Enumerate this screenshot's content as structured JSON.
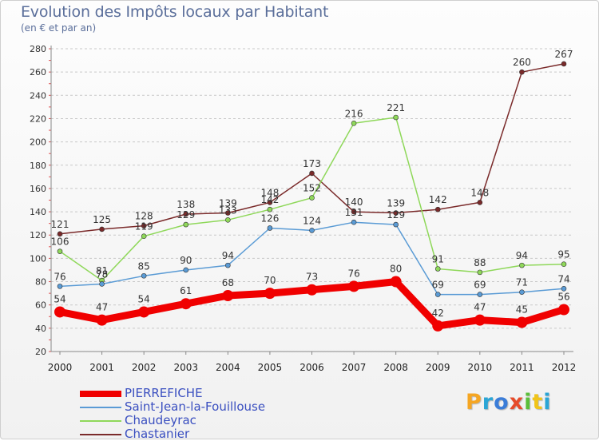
{
  "title": "Evolution des Impôts locaux par Habitant",
  "subtitle": "(en € et par an)",
  "brand": {
    "text": "Proxiti",
    "letters": [
      {
        "ch": "P",
        "color": "#f5a623"
      },
      {
        "ch": "r",
        "color": "#2aa5d6"
      },
      {
        "ch": "o",
        "color": "#3b7dd8"
      },
      {
        "ch": "x",
        "color": "#e64b2a"
      },
      {
        "ch": "i",
        "color": "#5bbf3a"
      },
      {
        "ch": "t",
        "color": "#f0c419"
      },
      {
        "ch": "i",
        "color": "#2aa5d6"
      }
    ]
  },
  "chart_data": {
    "type": "line",
    "title": "Evolution des Impôts locaux par Habitant",
    "subtitle": "(en € et par an)",
    "xlabel": "",
    "ylabel": "",
    "x": [
      "2000",
      "2001",
      "2002",
      "2003",
      "2004",
      "2005",
      "2006",
      "2007",
      "2008",
      "2009",
      "2010",
      "2011",
      "2012"
    ],
    "ylim": [
      20,
      280
    ],
    "yticks": [
      "20",
      "40",
      "60",
      "80",
      "100",
      "120",
      "140",
      "160",
      "180",
      "200",
      "220",
      "240",
      "260",
      "280"
    ],
    "grid": "horizontal dashed",
    "legend_position": "bottom-left",
    "series": [
      {
        "name": "PIERREFICHE",
        "color": "#f00000",
        "thick": true,
        "values": [
          54,
          47,
          54,
          61,
          68,
          70,
          73,
          76,
          80,
          42,
          47,
          45,
          56
        ],
        "labels": [
          "54",
          "47",
          "54",
          "61",
          "68",
          "70",
          "73",
          "76",
          "80",
          "42",
          "47",
          "45",
          "56"
        ]
      },
      {
        "name": "Saint-Jean-la-Fouillouse",
        "color": "#5a9bd5",
        "thick": false,
        "values": [
          76,
          78,
          85,
          90,
          94,
          126,
          124,
          131,
          129,
          69,
          69,
          71,
          74
        ],
        "labels": [
          "76",
          "78",
          "85",
          "90",
          "94",
          "126",
          "124",
          "131",
          "129",
          "69",
          "69",
          "71",
          "74"
        ]
      },
      {
        "name": "Chaudeyrac",
        "color": "#8fd85a",
        "thick": false,
        "values": [
          106,
          81,
          119,
          129,
          133,
          142,
          152,
          216,
          221,
          91,
          88,
          94,
          95
        ],
        "labels": [
          "106",
          "81",
          "119",
          "129",
          "133",
          "142",
          "152",
          "216",
          "221",
          "91",
          "88",
          "94",
          "95"
        ]
      },
      {
        "name": "Chastanier",
        "color": "#7a2a2a",
        "thick": false,
        "values": [
          121,
          125,
          128,
          138,
          139,
          148,
          173,
          140,
          139,
          142,
          148,
          260,
          267
        ],
        "labels": [
          "121",
          "125",
          "128",
          "138",
          "139",
          "148",
          "173",
          "140",
          "139",
          "142",
          "148",
          "260",
          "267"
        ]
      }
    ]
  }
}
